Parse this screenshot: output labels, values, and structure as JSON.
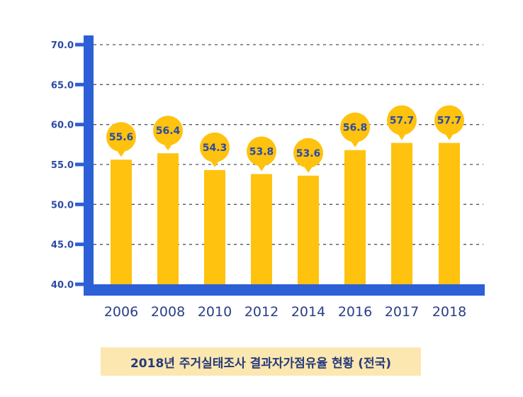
{
  "chart_data": {
    "type": "bar",
    "categories": [
      "2006",
      "2008",
      "2010",
      "2012",
      "2014",
      "2016",
      "2017",
      "2018"
    ],
    "values": [
      55.6,
      56.4,
      54.3,
      53.8,
      53.6,
      56.8,
      57.7,
      57.7
    ],
    "value_labels": [
      "55.6",
      "56.4",
      "54.3",
      "53.8",
      "53.6",
      "56.8",
      "57.7",
      "57.7"
    ],
    "y_ticks": [
      "40.0",
      "45.0",
      "50.0",
      "55.0",
      "60.0",
      "65.0",
      "70.0"
    ],
    "ylim": [
      40,
      70
    ],
    "grid": true,
    "title": "2018년 주거실태조사 결과자가점유율 현황 (전국)",
    "colors": {
      "bar": "#ffc20e",
      "axis": "#2d5fd6",
      "bubble": "#ffc20e",
      "label_text": "#2b4aa6",
      "caption_bg": "#fde7b0"
    }
  }
}
